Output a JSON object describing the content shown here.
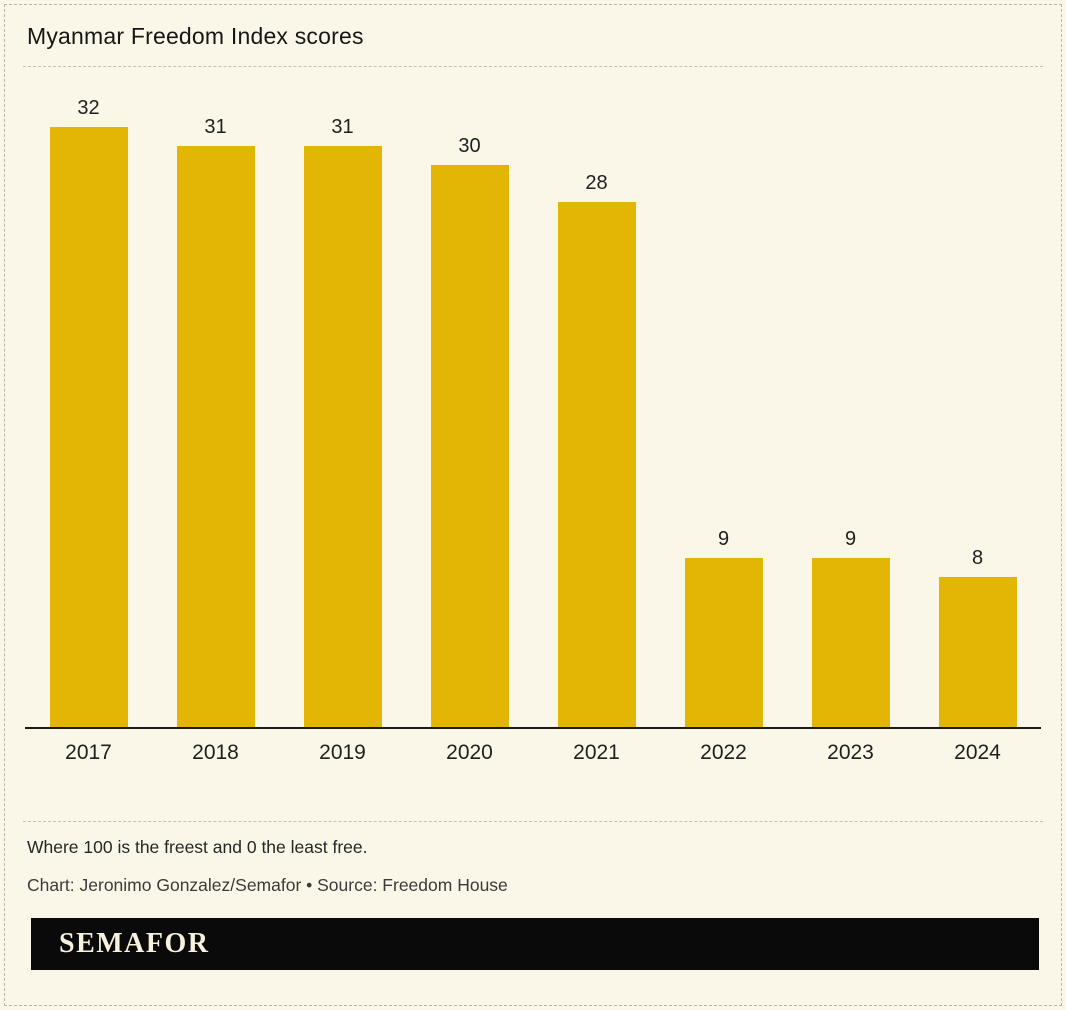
{
  "page": {
    "title": "Myanmar Freedom Index scores",
    "footnote": "Where 100 is the freest and 0 the least free.",
    "credit": "Chart: Jeronimo Gonzalez/Semafor • Source: Freedom House",
    "brand": "SEMAFOR"
  },
  "colors": {
    "background": "#FAF7E8",
    "bar": "#E3B505",
    "text": "#1A1A1A",
    "axis": "#1A1A1A",
    "dashed_line": "#C5C1AF",
    "banner_background": "#0A0A0A",
    "banner_text": "#F8F1DE"
  },
  "chart_data": {
    "type": "bar",
    "title": "Myanmar Freedom Index scores",
    "categories": [
      "2017",
      "2018",
      "2019",
      "2020",
      "2021",
      "2022",
      "2023",
      "2024"
    ],
    "values": [
      32,
      31,
      31,
      30,
      28,
      9,
      9,
      8
    ],
    "xlabel": "",
    "ylabel": "",
    "ylim": [
      0,
      32
    ],
    "bar_color": "#E3B505",
    "data_labels": true,
    "grid": false,
    "legend": false
  }
}
